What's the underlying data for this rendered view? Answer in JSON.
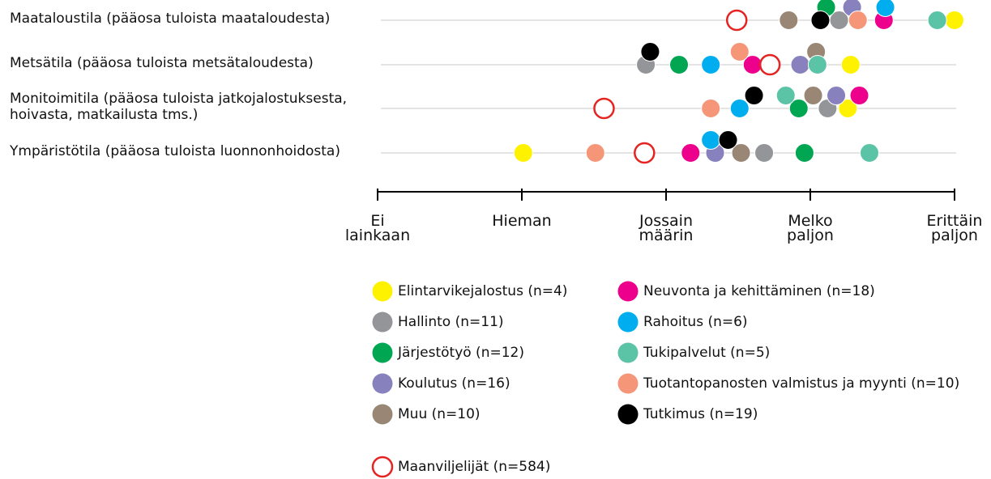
{
  "chart_data": {
    "type": "dot",
    "categories": [
      "Maataloustila (pääosa tuloista maataloudesta)",
      "Metsätila (pääosa tuloista metsätaloudesta)",
      "Monitoimitila (pääosa tuloista jatkojalostuksesta, hoivasta, matkailusta tms.)",
      "Ympäristötila (pääosa tuloista luonnonhoidosta)"
    ],
    "xlim": [
      1,
      5
    ],
    "xticks": [
      {
        "value": 1,
        "label": "Ei lainkaan"
      },
      {
        "value": 2,
        "label": "Hieman"
      },
      {
        "value": 3,
        "label": "Jossain määrin"
      },
      {
        "value": 4,
        "label": "Melko paljon"
      },
      {
        "value": 5,
        "label": "Erittäin paljon"
      }
    ],
    "series": [
      {
        "name": "Elintarvikejalostus (n=4)",
        "color": "#fff200",
        "values": [
          5.0,
          4.28,
          4.26,
          2.01
        ]
      },
      {
        "name": "Hallinto (n=11)",
        "color": "#939598",
        "values": [
          4.2,
          2.86,
          4.12,
          3.68
        ]
      },
      {
        "name": "Järjestötyö (n=12)",
        "color": "#00a651",
        "values": [
          4.11,
          3.09,
          3.92,
          3.96
        ]
      },
      {
        "name": "Koulutus (n=16)",
        "color": "#8781bd",
        "values": [
          4.29,
          3.93,
          4.18,
          3.34
        ]
      },
      {
        "name": "Muu (n=10)",
        "color": "#998675",
        "values": [
          3.85,
          4.04,
          4.02,
          3.52
        ]
      },
      {
        "name": "Neuvonta ja kehittäminen (n=18)",
        "color": "#ec008c",
        "values": [
          4.51,
          3.6,
          4.34,
          3.17
        ]
      },
      {
        "name": "Rahoitus (n=6)",
        "color": "#00aeef",
        "values": [
          4.52,
          3.31,
          3.51,
          3.31
        ]
      },
      {
        "name": "Tukipalvelut (n=5)",
        "color": "#5bc4a6",
        "values": [
          4.88,
          4.05,
          3.83,
          4.41
        ]
      },
      {
        "name": "Tuotantopanosten valmistus ja myynti (n=10)",
        "color": "#f69679",
        "values": [
          4.33,
          3.51,
          3.31,
          2.51
        ]
      },
      {
        "name": "Tutkimus (n=19)",
        "color": "#000000",
        "values": [
          4.07,
          2.89,
          3.61,
          3.43
        ]
      },
      {
        "name": "Maanviljelijät (n=584)",
        "color": "#e52421",
        "hollow": true,
        "values": [
          3.49,
          3.72,
          2.57,
          2.85
        ]
      }
    ]
  }
}
